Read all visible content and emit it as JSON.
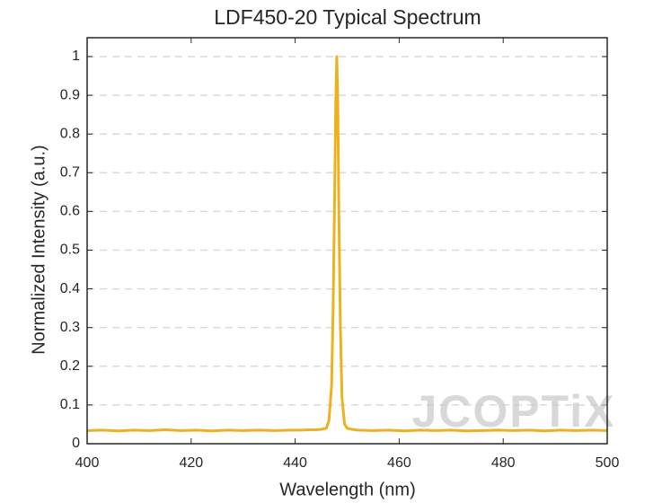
{
  "chart_data": {
    "type": "line",
    "title": "LDF450-20 Typical Spectrum",
    "x_label": "Wavelength (nm)",
    "y_label": "Normalized Intensity (a.u.)",
    "watermark": "JCOPTiX",
    "x": [
      400,
      403,
      406,
      409,
      412,
      415,
      418,
      421,
      424,
      427,
      430,
      433,
      436,
      439,
      441,
      443,
      444,
      445,
      446,
      446.5,
      447,
      447.3,
      447.6,
      447.8,
      448,
      448.2,
      448.4,
      448.7,
      449,
      449.5,
      450,
      451,
      452,
      455,
      458,
      461,
      464,
      467,
      470,
      473,
      476,
      479,
      482,
      485,
      488,
      491,
      494,
      497,
      500
    ],
    "series": [
      {
        "color": "#edb120",
        "values": [
          0.034,
          0.035,
          0.033,
          0.035,
          0.034,
          0.036,
          0.034,
          0.035,
          0.033,
          0.035,
          0.034,
          0.035,
          0.034,
          0.035,
          0.035,
          0.036,
          0.036,
          0.037,
          0.04,
          0.06,
          0.15,
          0.35,
          0.65,
          0.88,
          1,
          0.88,
          0.6,
          0.3,
          0.12,
          0.05,
          0.04,
          0.037,
          0.035,
          0.034,
          0.035,
          0.033,
          0.035,
          0.034,
          0.035,
          0.033,
          0.034,
          0.035,
          0.034,
          0.035,
          0.033,
          0.035,
          0.034,
          0.035,
          0.034
        ]
      }
    ],
    "xlim": [
      400,
      500
    ],
    "xticks": [
      400,
      420,
      440,
      460,
      480,
      500
    ],
    "ylim": [
      0,
      1
    ],
    "yticks": [
      0,
      0.1,
      0.2,
      0.3,
      0.4,
      0.5,
      0.6,
      0.7,
      0.8,
      0.9,
      1
    ],
    "grid": true
  }
}
